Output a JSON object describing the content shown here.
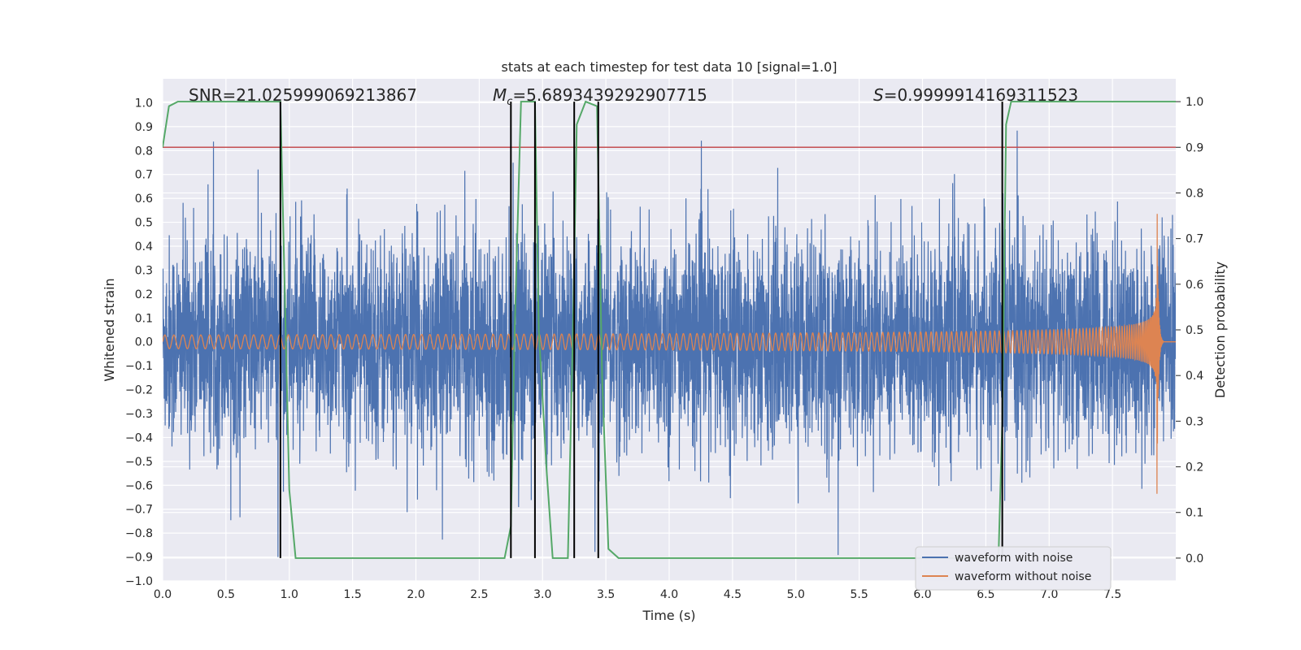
{
  "chart_data": {
    "type": "line",
    "title": "stats at each timestep for test data 10 [signal=1.0]",
    "xlabel": "Time (s)",
    "ylabel": "Whitened strain",
    "ylabel_right": "Detection probability",
    "xlim": [
      0.0,
      8.0
    ],
    "ylim": [
      -1.0,
      1.1
    ],
    "ylim_right": [
      -0.05,
      1.05
    ],
    "x_ticks": [
      "0.0",
      "0.5",
      "1.0",
      "1.5",
      "2.0",
      "2.5",
      "3.0",
      "3.5",
      "4.0",
      "4.5",
      "5.0",
      "5.5",
      "6.0",
      "6.5",
      "7.0",
      "7.5"
    ],
    "y_ticks": [
      "1.0",
      "0.9",
      "0.8",
      "0.7",
      "0.6",
      "0.5",
      "0.4",
      "0.3",
      "0.2",
      "0.1",
      "0.0",
      "−0.1",
      "−0.2",
      "−0.3",
      "−0.4",
      "−0.5",
      "−0.6",
      "−0.7",
      "−0.8",
      "−0.9",
      "−1.0"
    ],
    "y_right_ticks": [
      "1.0",
      "0.9",
      "0.8",
      "0.7",
      "0.6",
      "0.5",
      "0.4",
      "0.3",
      "0.2",
      "0.1",
      "0.0"
    ],
    "grid": true,
    "legend": {
      "placement": "lower-right",
      "entries": [
        "waveform with noise",
        "waveform without noise"
      ]
    },
    "annotations": {
      "snr": "SNR=21.025999069213867",
      "mc_symbol": "M",
      "mc_sub": "c",
      "mc_value": "=5.6893439292907715",
      "s_symbol": "S",
      "s_value": "=0.9999914169311523"
    },
    "threshold": {
      "value": 0.9,
      "axis": "right",
      "color": "#c44e52"
    },
    "vertical_lines_x": [
      0.93,
      2.75,
      2.94,
      3.25,
      3.44,
      6.63
    ],
    "detection_probability": {
      "x": [
        0.0,
        0.05,
        0.12,
        0.3,
        0.6,
        0.93,
        1.0,
        1.05,
        1.1,
        1.5,
        2.0,
        2.5,
        2.7,
        2.75,
        2.78,
        2.83,
        2.9,
        2.94,
        2.97,
        3.03,
        3.08,
        3.2,
        3.24,
        3.27,
        3.34,
        3.43,
        3.47,
        3.52,
        3.6,
        4.0,
        5.0,
        6.0,
        6.6,
        6.63,
        6.66,
        6.7,
        7.0,
        7.5,
        8.0
      ],
      "y": [
        0.9,
        0.99,
        1.0,
        1.0,
        1.0,
        1.0,
        0.15,
        0.0,
        0.0,
        0.0,
        0.0,
        0.0,
        0.0,
        0.07,
        0.5,
        1.0,
        1.0,
        1.0,
        0.5,
        0.2,
        0.0,
        0.0,
        0.5,
        0.95,
        1.0,
        0.99,
        0.4,
        0.02,
        0.0,
        0.0,
        0.0,
        0.0,
        0.0,
        0.3,
        0.95,
        1.0,
        1.0,
        1.0,
        1.0
      ],
      "color": "#55a868"
    },
    "series": [
      {
        "name": "waveform with noise",
        "color": "#4c72b0",
        "envelope_std": 0.22,
        "range": [
          -0.9,
          1.0
        ]
      },
      {
        "name": "waveform without noise",
        "color": "#dd8452",
        "amplitude_start": 0.025,
        "amplitude_end": 0.75,
        "merger_time": 7.85,
        "signal_end": 7.9
      }
    ],
    "colors": {
      "axes_bg": "#eaeaf2",
      "grid": "#ffffff",
      "vline": "#000000"
    }
  }
}
